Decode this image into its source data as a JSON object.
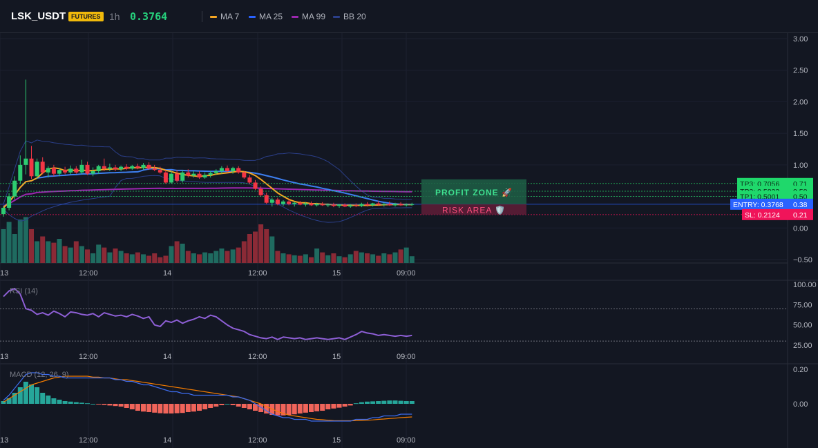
{
  "header": {
    "symbol": "LSK_USDT",
    "badge": "FUTURES",
    "interval": "1h",
    "price": "0.3764",
    "legend": [
      {
        "label": "MA 7",
        "color": "#f5a623"
      },
      {
        "label": "MA 25",
        "color": "#2962ff"
      },
      {
        "label": "MA 99",
        "color": "#9c27b0"
      },
      {
        "label": "BB 20",
        "color": "#2b3f8a"
      }
    ]
  },
  "colors": {
    "up": "#26a69a",
    "up_bright": "#2ecc71",
    "down": "#f23645",
    "vol_up": "#1f6b60",
    "vol_down": "#8b2a36",
    "ma7": "#f5a623",
    "ma25": "#3d7ff0",
    "ma99": "#9c27b0",
    "bb": "#2b3f8a",
    "rsi": "#8e5fd6",
    "macd": "#3d6df0",
    "signal": "#f57c00",
    "profit": "#22c55e",
    "risk": "#f0145a",
    "entry": "#2962ff"
  },
  "chart_data": [
    {
      "type": "candlestick",
      "pair": "LSK_USDT",
      "interval": "1h",
      "ylim": [
        -0.6,
        3.1
      ],
      "yticks": [
        "3.00",
        "2.50",
        "2.00",
        "1.50",
        "1.00",
        "0.50",
        "0.00",
        "−0.50"
      ],
      "xticks": [
        "13",
        "12:00",
        "14",
        "12:00",
        "15",
        "09:00"
      ],
      "candles": [
        {
          "o": 0.22,
          "h": 0.35,
          "l": 0.18,
          "c": 0.32
        },
        {
          "o": 0.32,
          "h": 0.55,
          "l": 0.28,
          "c": 0.5
        },
        {
          "o": 0.5,
          "h": 0.82,
          "l": 0.45,
          "c": 0.75
        },
        {
          "o": 0.75,
          "h": 1.15,
          "l": 0.7,
          "c": 1.0
        },
        {
          "o": 1.0,
          "h": 2.35,
          "l": 0.85,
          "c": 1.1
        },
        {
          "o": 1.1,
          "h": 1.3,
          "l": 0.78,
          "c": 0.82
        },
        {
          "o": 0.82,
          "h": 1.1,
          "l": 0.78,
          "c": 1.05
        },
        {
          "o": 1.05,
          "h": 1.12,
          "l": 0.85,
          "c": 0.88
        },
        {
          "o": 0.88,
          "h": 0.98,
          "l": 0.8,
          "c": 0.95
        },
        {
          "o": 0.95,
          "h": 1.0,
          "l": 0.82,
          "c": 0.86
        },
        {
          "o": 0.86,
          "h": 0.95,
          "l": 0.82,
          "c": 0.92
        },
        {
          "o": 0.92,
          "h": 0.97,
          "l": 0.85,
          "c": 0.88
        },
        {
          "o": 0.88,
          "h": 0.99,
          "l": 0.85,
          "c": 0.94
        },
        {
          "o": 0.94,
          "h": 0.98,
          "l": 0.86,
          "c": 0.88
        },
        {
          "o": 0.88,
          "h": 1.08,
          "l": 0.85,
          "c": 1.0
        },
        {
          "o": 1.0,
          "h": 1.05,
          "l": 0.84,
          "c": 0.86
        },
        {
          "o": 0.86,
          "h": 0.96,
          "l": 0.82,
          "c": 0.9
        },
        {
          "o": 0.9,
          "h": 1.0,
          "l": 0.86,
          "c": 0.98
        },
        {
          "o": 0.98,
          "h": 1.1,
          "l": 0.9,
          "c": 0.94
        },
        {
          "o": 0.94,
          "h": 1.02,
          "l": 0.9,
          "c": 0.96
        },
        {
          "o": 0.96,
          "h": 1.0,
          "l": 0.9,
          "c": 0.93
        },
        {
          "o": 0.93,
          "h": 0.99,
          "l": 0.9,
          "c": 0.97
        },
        {
          "o": 0.97,
          "h": 1.01,
          "l": 0.92,
          "c": 0.94
        },
        {
          "o": 0.94,
          "h": 1.0,
          "l": 0.92,
          "c": 0.98
        },
        {
          "o": 0.98,
          "h": 1.02,
          "l": 0.93,
          "c": 0.95
        },
        {
          "o": 0.95,
          "h": 1.03,
          "l": 0.92,
          "c": 1.0
        },
        {
          "o": 1.0,
          "h": 1.04,
          "l": 0.92,
          "c": 0.94
        },
        {
          "o": 0.94,
          "h": 1.0,
          "l": 0.9,
          "c": 0.92
        },
        {
          "o": 0.92,
          "h": 0.97,
          "l": 0.86,
          "c": 0.88
        },
        {
          "o": 0.88,
          "h": 0.92,
          "l": 0.7,
          "c": 0.72
        },
        {
          "o": 0.72,
          "h": 0.9,
          "l": 0.7,
          "c": 0.86
        },
        {
          "o": 0.86,
          "h": 0.92,
          "l": 0.72,
          "c": 0.75
        },
        {
          "o": 0.75,
          "h": 0.92,
          "l": 0.72,
          "c": 0.88
        },
        {
          "o": 0.88,
          "h": 0.93,
          "l": 0.8,
          "c": 0.83
        },
        {
          "o": 0.83,
          "h": 0.9,
          "l": 0.8,
          "c": 0.86
        },
        {
          "o": 0.86,
          "h": 0.9,
          "l": 0.78,
          "c": 0.8
        },
        {
          "o": 0.8,
          "h": 0.88,
          "l": 0.78,
          "c": 0.84
        },
        {
          "o": 0.84,
          "h": 0.9,
          "l": 0.8,
          "c": 0.87
        },
        {
          "o": 0.87,
          "h": 0.93,
          "l": 0.84,
          "c": 0.9
        },
        {
          "o": 0.9,
          "h": 0.98,
          "l": 0.86,
          "c": 0.95
        },
        {
          "o": 0.95,
          "h": 0.99,
          "l": 0.88,
          "c": 0.9
        },
        {
          "o": 0.9,
          "h": 0.97,
          "l": 0.86,
          "c": 0.95
        },
        {
          "o": 0.95,
          "h": 0.98,
          "l": 0.86,
          "c": 0.88
        },
        {
          "o": 0.88,
          "h": 0.9,
          "l": 0.78,
          "c": 0.8
        },
        {
          "o": 0.8,
          "h": 0.84,
          "l": 0.7,
          "c": 0.72
        },
        {
          "o": 0.72,
          "h": 0.76,
          "l": 0.6,
          "c": 0.62
        },
        {
          "o": 0.62,
          "h": 0.66,
          "l": 0.5,
          "c": 0.52
        },
        {
          "o": 0.52,
          "h": 0.56,
          "l": 0.38,
          "c": 0.4
        },
        {
          "o": 0.4,
          "h": 0.48,
          "l": 0.34,
          "c": 0.45
        },
        {
          "o": 0.45,
          "h": 0.48,
          "l": 0.36,
          "c": 0.38
        },
        {
          "o": 0.38,
          "h": 0.44,
          "l": 0.35,
          "c": 0.42
        },
        {
          "o": 0.42,
          "h": 0.45,
          "l": 0.36,
          "c": 0.38
        },
        {
          "o": 0.38,
          "h": 0.42,
          "l": 0.34,
          "c": 0.4
        },
        {
          "o": 0.4,
          "h": 0.43,
          "l": 0.36,
          "c": 0.37
        },
        {
          "o": 0.37,
          "h": 0.41,
          "l": 0.34,
          "c": 0.39
        },
        {
          "o": 0.39,
          "h": 0.42,
          "l": 0.35,
          "c": 0.36
        },
        {
          "o": 0.36,
          "h": 0.4,
          "l": 0.34,
          "c": 0.38
        },
        {
          "o": 0.38,
          "h": 0.41,
          "l": 0.35,
          "c": 0.36
        },
        {
          "o": 0.36,
          "h": 0.39,
          "l": 0.33,
          "c": 0.37
        },
        {
          "o": 0.37,
          "h": 0.4,
          "l": 0.33,
          "c": 0.35
        },
        {
          "o": 0.35,
          "h": 0.38,
          "l": 0.32,
          "c": 0.37
        },
        {
          "o": 0.37,
          "h": 0.39,
          "l": 0.33,
          "c": 0.34
        },
        {
          "o": 0.34,
          "h": 0.38,
          "l": 0.32,
          "c": 0.36
        },
        {
          "o": 0.36,
          "h": 0.39,
          "l": 0.33,
          "c": 0.35
        },
        {
          "o": 0.35,
          "h": 0.4,
          "l": 0.33,
          "c": 0.38
        },
        {
          "o": 0.38,
          "h": 0.41,
          "l": 0.34,
          "c": 0.36
        },
        {
          "o": 0.36,
          "h": 0.4,
          "l": 0.34,
          "c": 0.39
        },
        {
          "o": 0.39,
          "h": 0.43,
          "l": 0.35,
          "c": 0.37
        },
        {
          "o": 0.37,
          "h": 0.4,
          "l": 0.34,
          "c": 0.38
        },
        {
          "o": 0.38,
          "h": 0.42,
          "l": 0.35,
          "c": 0.36
        },
        {
          "o": 0.36,
          "h": 0.4,
          "l": 0.34,
          "c": 0.38
        },
        {
          "o": 0.38,
          "h": 0.41,
          "l": 0.35,
          "c": 0.36
        },
        {
          "o": 0.36,
          "h": 0.39,
          "l": 0.34,
          "c": 0.37
        },
        {
          "o": 0.37,
          "h": 0.4,
          "l": 0.35,
          "c": 0.376
        }
      ],
      "volume": [
        0.7,
        0.85,
        0.6,
        0.9,
        0.95,
        0.7,
        0.45,
        0.55,
        0.45,
        0.42,
        0.5,
        0.35,
        0.32,
        0.45,
        0.35,
        0.28,
        0.2,
        0.38,
        0.32,
        0.22,
        0.3,
        0.25,
        0.2,
        0.18,
        0.22,
        0.18,
        0.15,
        0.2,
        0.12,
        0.15,
        0.35,
        0.45,
        0.4,
        0.25,
        0.2,
        0.18,
        0.22,
        0.2,
        0.25,
        0.3,
        0.25,
        0.28,
        0.32,
        0.45,
        0.6,
        0.65,
        0.8,
        0.7,
        0.55,
        0.25,
        0.2,
        0.18,
        0.16,
        0.15,
        0.18,
        0.12,
        0.3,
        0.22,
        0.16,
        0.2,
        0.14,
        0.12,
        0.18,
        0.25,
        0.22,
        0.2,
        0.18,
        0.15,
        0.2,
        0.18,
        0.22,
        0.28,
        0.32,
        0.14
      ],
      "levels": [
        {
          "name": "TP3",
          "label": "TP3: 0.7056",
          "axis": "0.71",
          "value": 0.7056,
          "kind": "profit"
        },
        {
          "name": "TP2",
          "label": "TP2: 0.5823",
          "axis": "0.58",
          "value": 0.5823,
          "kind": "profit"
        },
        {
          "name": "TP1",
          "label": "TP1: 0.5001",
          "axis": "0.50",
          "value": 0.5001,
          "kind": "profit"
        },
        {
          "name": "ENTRY",
          "label": "ENTRY: 0.3768",
          "axis": "0.38",
          "value": 0.3768,
          "kind": "entry"
        },
        {
          "name": "SL",
          "label": "SL: 0.2124",
          "axis": "0.21",
          "value": 0.2124,
          "kind": "risk"
        }
      ],
      "zones": {
        "profit_label": "PROFIT ZONE 🚀",
        "risk_label": "RISK AREA 🛡️"
      }
    },
    {
      "type": "line",
      "name": "RSI (14)",
      "ylim": [
        20,
        100
      ],
      "yticks": [
        "100.00",
        "75.00",
        "50.00",
        "25.00"
      ],
      "xticks": [
        "13",
        "12:00",
        "14",
        "12:00",
        "15",
        "09:00"
      ],
      "bands": [
        70,
        30
      ],
      "values": [
        85,
        92,
        95,
        88,
        70,
        68,
        63,
        65,
        62,
        67,
        64,
        60,
        66,
        65,
        63,
        62,
        64,
        60,
        65,
        63,
        61,
        62,
        60,
        63,
        61,
        58,
        60,
        50,
        48,
        55,
        53,
        56,
        52,
        55,
        57,
        60,
        58,
        62,
        60,
        55,
        50,
        46,
        44,
        42,
        38,
        36,
        34,
        33,
        35,
        32,
        35,
        34,
        33,
        34,
        32,
        33,
        34,
        33,
        32,
        33,
        34,
        32,
        35,
        38,
        42,
        40,
        39,
        37,
        38,
        37,
        36,
        37,
        36,
        37
      ]
    },
    {
      "type": "line+bar",
      "name": "MACD (12, 26, 9)",
      "ylim": [
        -0.15,
        0.23
      ],
      "yticks": [
        "0.20",
        "0.00"
      ],
      "xticks": [
        "13",
        "12:00",
        "14",
        "12:00",
        "15",
        "09:00"
      ],
      "macd": [
        0.02,
        0.05,
        0.09,
        0.13,
        0.17,
        0.18,
        0.18,
        0.17,
        0.17,
        0.16,
        0.16,
        0.15,
        0.15,
        0.15,
        0.15,
        0.15,
        0.15,
        0.15,
        0.15,
        0.15,
        0.14,
        0.14,
        0.13,
        0.13,
        0.12,
        0.11,
        0.11,
        0.1,
        0.09,
        0.08,
        0.07,
        0.07,
        0.06,
        0.06,
        0.05,
        0.05,
        0.05,
        0.05,
        0.05,
        0.05,
        0.05,
        0.04,
        0.04,
        0.03,
        0.02,
        0.0,
        -0.02,
        -0.04,
        -0.06,
        -0.07,
        -0.08,
        -0.08,
        -0.09,
        -0.09,
        -0.09,
        -0.1,
        -0.1,
        -0.1,
        -0.1,
        -0.1,
        -0.1,
        -0.1,
        -0.1,
        -0.09,
        -0.09,
        -0.09,
        -0.08,
        -0.08,
        -0.07,
        -0.07,
        -0.07,
        -0.06,
        -0.06,
        -0.06
      ],
      "signal": [
        0.01,
        0.03,
        0.05,
        0.07,
        0.09,
        0.11,
        0.12,
        0.13,
        0.14,
        0.15,
        0.155,
        0.16,
        0.16,
        0.16,
        0.16,
        0.16,
        0.155,
        0.155,
        0.15,
        0.15,
        0.145,
        0.14,
        0.14,
        0.135,
        0.13,
        0.125,
        0.12,
        0.115,
        0.11,
        0.105,
        0.1,
        0.095,
        0.09,
        0.085,
        0.08,
        0.075,
        0.07,
        0.065,
        0.06,
        0.055,
        0.05,
        0.045,
        0.04,
        0.03,
        0.02,
        0.01,
        0.0,
        -0.015,
        -0.03,
        -0.045,
        -0.055,
        -0.065,
        -0.07,
        -0.075,
        -0.08,
        -0.085,
        -0.09,
        -0.092,
        -0.095,
        -0.097,
        -0.098,
        -0.098,
        -0.098,
        -0.097,
        -0.096,
        -0.095,
        -0.093,
        -0.09,
        -0.088,
        -0.085,
        -0.083,
        -0.08,
        -0.078,
        -0.076
      ],
      "hist": [
        0.01,
        0.02,
        0.04,
        0.06,
        0.08,
        0.07,
        0.06,
        0.04,
        0.03,
        0.02,
        0.015,
        0.01,
        0.008,
        0.006,
        0.004,
        0.002,
        0.0,
        -0.002,
        -0.004,
        -0.006,
        -0.008,
        -0.01,
        -0.015,
        -0.02,
        -0.025,
        -0.028,
        -0.03,
        -0.032,
        -0.034,
        -0.035,
        -0.035,
        -0.034,
        -0.033,
        -0.03,
        -0.028,
        -0.025,
        -0.02,
        -0.015,
        -0.01,
        -0.005,
        0.0,
        -0.005,
        -0.01,
        -0.015,
        -0.02,
        -0.025,
        -0.03,
        -0.035,
        -0.04,
        -0.042,
        -0.042,
        -0.04,
        -0.038,
        -0.035,
        -0.032,
        -0.03,
        -0.027,
        -0.025,
        -0.02,
        -0.017,
        -0.014,
        -0.01,
        -0.006,
        0.002,
        0.006,
        0.008,
        0.009,
        0.01,
        0.011,
        0.012,
        0.012,
        0.011,
        0.01,
        0.01
      ]
    }
  ]
}
